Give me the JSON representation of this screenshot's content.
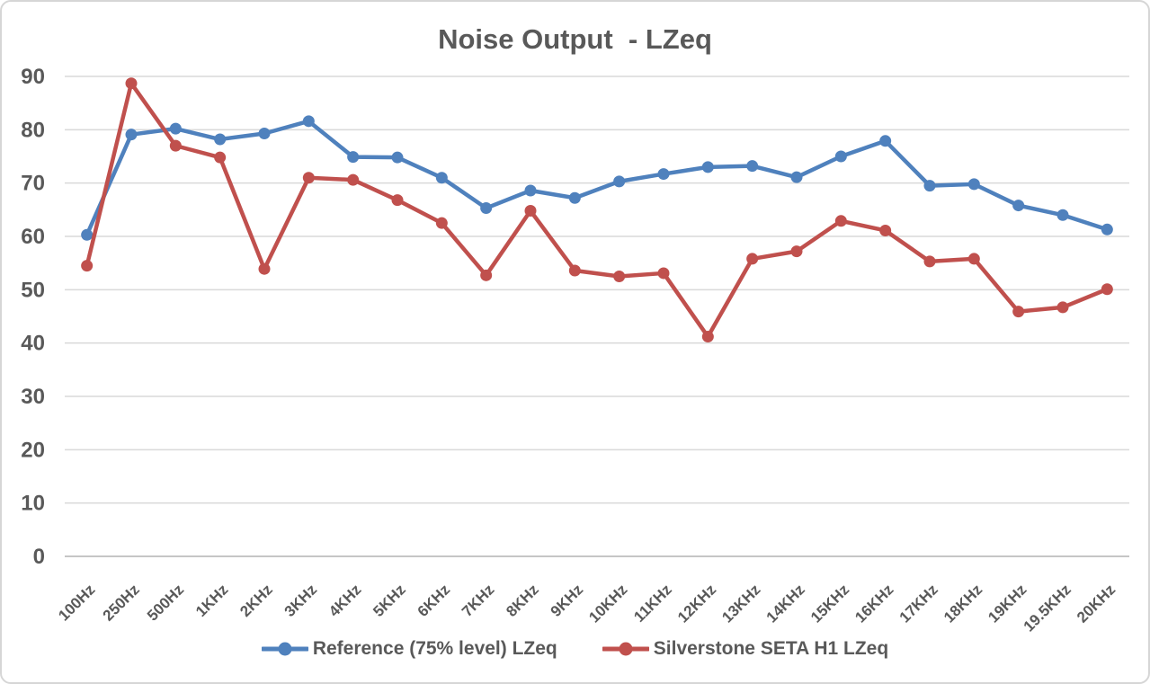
{
  "chart": {
    "title": "Noise Output  - LZeq",
    "colors": {
      "reference_blue": "#4F81BD",
      "seta_red": "#C0504D",
      "gridline": "#D9D9D9",
      "axis_line": "#C6C6C6",
      "text": "#595959",
      "frame_border": "#D6D6D6",
      "background": "#FFFFFF"
    }
  },
  "chart_data": {
    "type": "line",
    "title": "Noise Output  - LZeq",
    "categories": [
      "100Hz",
      "250Hz",
      "500Hz",
      "1KHz",
      "2KHz",
      "3KHz",
      "4KHz",
      "5KHz",
      "6KHz",
      "7KHz",
      "8KHz",
      "9KHz",
      "10KHz",
      "11KHz",
      "12KHz",
      "13KHz",
      "14KHz",
      "15KHz",
      "16KHz",
      "17KHz",
      "18KHz",
      "19KHz",
      "19.5KHz",
      "20KHz"
    ],
    "series": [
      {
        "name": "Reference (75% level) LZeq",
        "color": "#4F81BD",
        "values": [
          60.3,
          79.1,
          80.2,
          78.2,
          79.3,
          81.6,
          74.9,
          74.8,
          71.0,
          65.3,
          68.6,
          67.2,
          70.3,
          71.7,
          73.0,
          73.2,
          71.1,
          75.0,
          77.9,
          69.5,
          69.8,
          65.8,
          64.0,
          61.3
        ]
      },
      {
        "name": "Silverstone SETA H1 LZeq",
        "color": "#C0504D",
        "values": [
          54.5,
          88.7,
          77.0,
          74.8,
          53.9,
          71.0,
          70.6,
          66.8,
          62.5,
          52.7,
          64.8,
          53.6,
          52.5,
          53.1,
          41.2,
          55.8,
          57.2,
          62.9,
          61.1,
          55.3,
          55.8,
          45.9,
          46.7,
          50.1
        ]
      }
    ],
    "xlabel": "",
    "ylabel": "",
    "ylim": [
      0,
      90
    ],
    "y_ticks": [
      0,
      10,
      20,
      30,
      40,
      50,
      60,
      70,
      80,
      90
    ],
    "grid": true,
    "legend_position": "bottom",
    "marker": "circle"
  }
}
